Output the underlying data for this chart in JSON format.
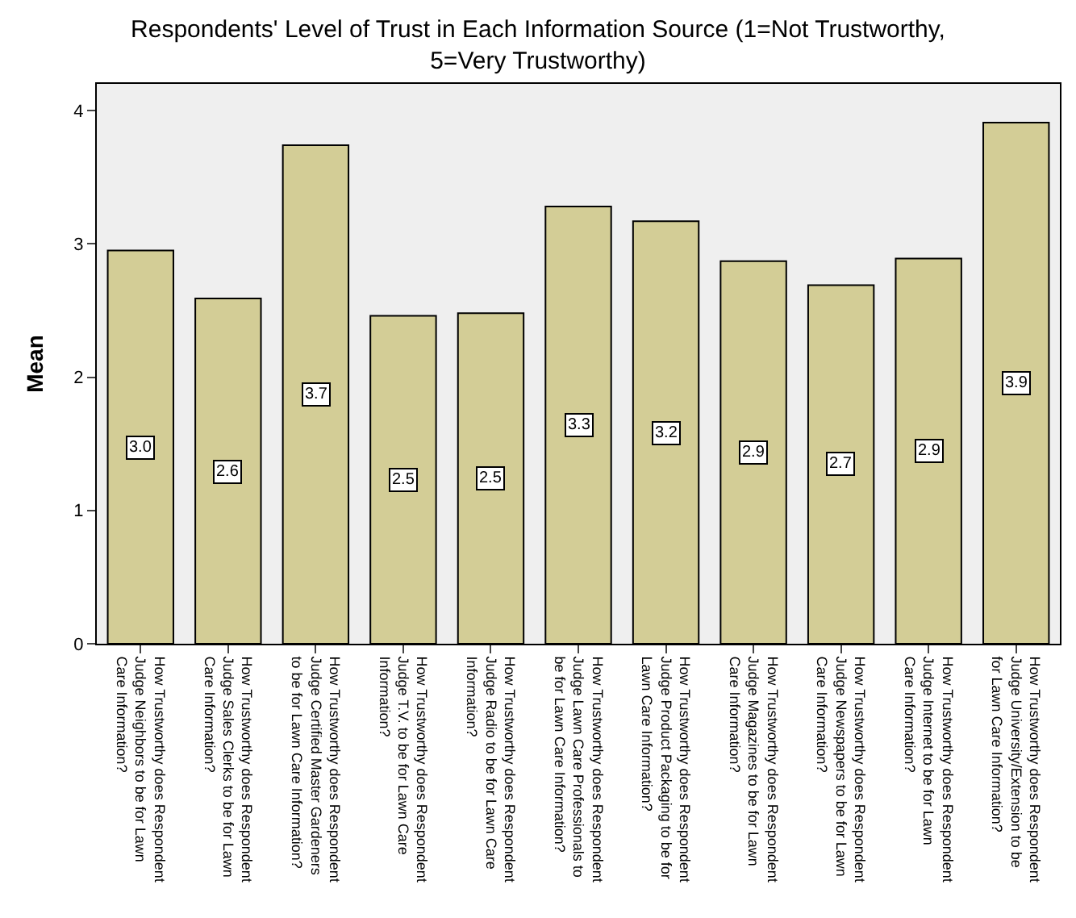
{
  "chart_data": {
    "type": "bar",
    "title": "Respondents' Level of Trust in Each Information Source (1=Not Trustworthy, 5=Very Trustworthy)",
    "ylabel": "Mean",
    "categories": [
      "How Trustworthy does Respondent Judge Neighbors to be for Lawn Care Information?",
      "How Trustworthy does Respondent Judge Sales Clerks to be for Lawn Care Information?",
      "How Trustworthy does Respondent Judge Certified Master Gardeners to be for Lawn Care Information?",
      "How Trustworthy does Respondent Judge T.V. to be for Lawn Care Information?",
      "How Trustworthy does Respondent Judge Radio to be for Lawn Care Information?",
      "How Trustworthy does Respondent Judge Lawn Care Professionals to be for Lawn Care Information?",
      "How Trustworthy does Respondent Judge Product Packaging to be for Lawn Care Information?",
      "How Trustworthy does Respondent Judge Magazines to be for Lawn Care Information?",
      "How Trustworthy does Respondent Judge Newspapers to be for Lawn Care Information?",
      "How Trustworthy does Respondent Judge Internet to be for Lawn Care Information?",
      "How Trustworthy does Respondent Judge University/Extension to be for Lawn Care Information?"
    ],
    "values": [
      2.95,
      2.59,
      3.74,
      2.46,
      2.48,
      3.28,
      3.17,
      2.87,
      2.69,
      2.89,
      3.91
    ],
    "value_labels": [
      "3.0",
      "2.6",
      "3.7",
      "2.5",
      "2.5",
      "3.3",
      "3.2",
      "2.9",
      "2.7",
      "2.9",
      "3.9"
    ],
    "color": "#d3cd96",
    "ylim": [
      0,
      4.2
    ],
    "yticks": [
      0,
      1,
      2,
      3,
      4
    ],
    "grid": false,
    "legend": false
  }
}
